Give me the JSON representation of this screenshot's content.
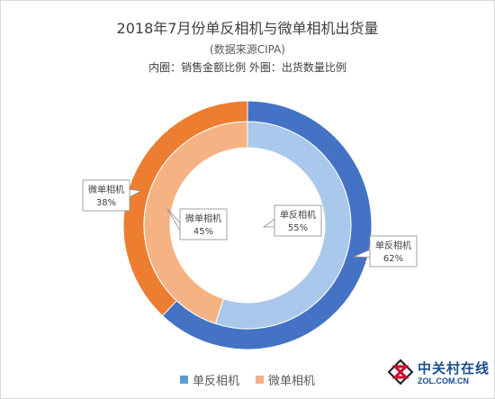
{
  "chart_data": {
    "type": "pie",
    "title": "2018年7月份单反相机与微单相机出货量",
    "subtitle": "(数据来源CIPA)",
    "note": "内圈：销售金额比例  外圈：出货数量比例",
    "categories": [
      "单反相机",
      "微单相机"
    ],
    "series": [
      {
        "name": "销售金额比例",
        "ring": "inner",
        "values": [
          55,
          45
        ],
        "colors": [
          "#a9c8eb",
          "#f5b383"
        ]
      },
      {
        "name": "出货数量比例",
        "ring": "outer",
        "values": [
          62,
          38
        ],
        "colors": [
          "#4472c4",
          "#ed7d31"
        ]
      }
    ],
    "data_labels": {
      "inner": [
        "单反相机\n55%",
        "微单相机\n45%"
      ],
      "outer": [
        "单反相机\n62%",
        "微单相机\n38%"
      ]
    },
    "legend": {
      "position": "bottom",
      "items": [
        {
          "label": "单反相机",
          "color": "#5b9bd5"
        },
        {
          "label": "微单相机",
          "color": "#f4b183"
        }
      ]
    }
  },
  "watermark": {
    "cn": "中关村在线",
    "en": "ZOL.COM.CN"
  }
}
